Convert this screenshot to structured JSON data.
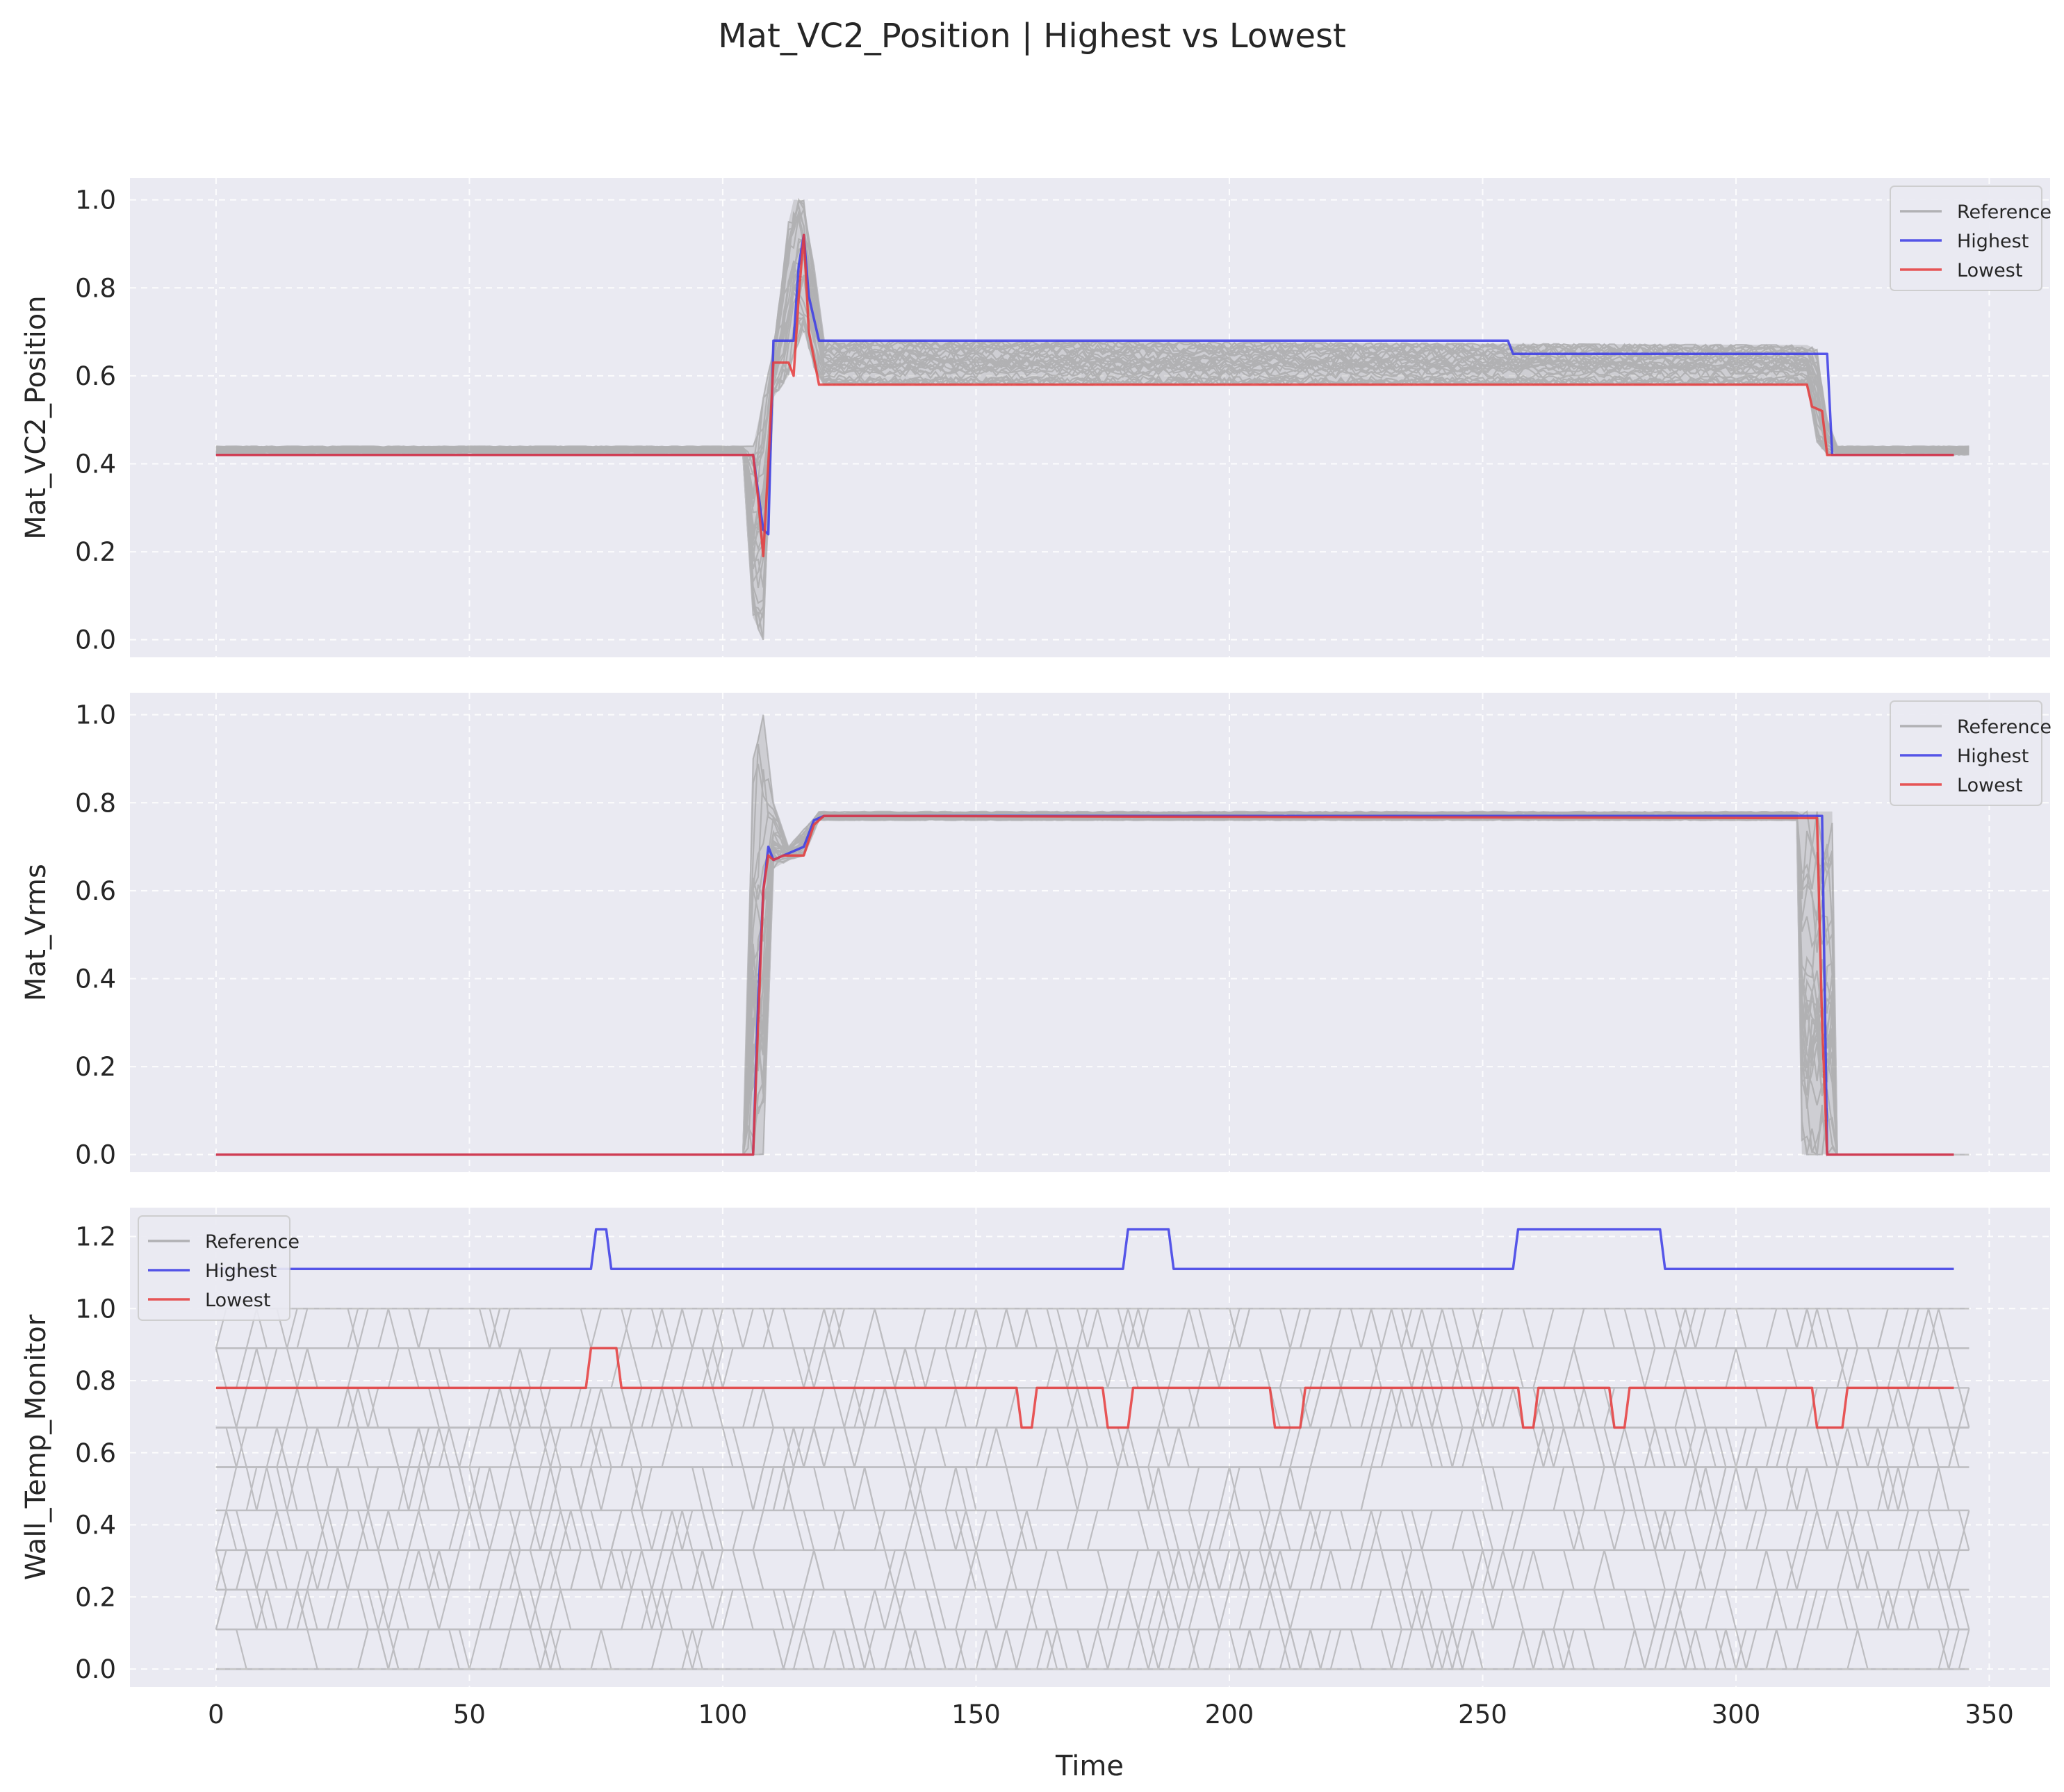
{
  "chart_data": {
    "type": "line",
    "title": "Mat_VC2_Position | Highest vs Lowest",
    "xlabel": "Time",
    "xlim": [
      -17,
      362
    ],
    "xticks": [
      0,
      50,
      100,
      150,
      200,
      250,
      300,
      350
    ],
    "colors": {
      "reference": "#9a9a9a",
      "highest": "#3b3be6",
      "lowest": "#e63b3b",
      "background": "#eaeaf2"
    },
    "grid": true,
    "legend_entries": [
      "Reference",
      "Highest",
      "Lowest"
    ],
    "panels": [
      {
        "ylabel": "Mat_VC2_Position",
        "ylim": [
          -0.04,
          1.05
        ],
        "yticks": [
          "0.0",
          "0.2",
          "0.4",
          "0.6",
          "0.8",
          "1.0"
        ],
        "legend_position": "upper-right",
        "series": [
          {
            "name": "Highest",
            "points": [
              [
                0,
                0.42
              ],
              [
                106,
                0.42
              ],
              [
                108,
                0.25
              ],
              [
                109,
                0.24
              ],
              [
                110,
                0.68
              ],
              [
                114,
                0.68
              ],
              [
                115,
                0.85
              ],
              [
                116,
                0.92
              ],
              [
                117,
                0.78
              ],
              [
                119,
                0.68
              ],
              [
                255,
                0.68
              ],
              [
                256,
                0.65
              ],
              [
                318,
                0.65
              ],
              [
                319,
                0.42
              ],
              [
                343,
                0.42
              ]
            ]
          },
          {
            "name": "Lowest",
            "points": [
              [
                0,
                0.42
              ],
              [
                106,
                0.42
              ],
              [
                107,
                0.32
              ],
              [
                108,
                0.19
              ],
              [
                109,
                0.4
              ],
              [
                110,
                0.63
              ],
              [
                113,
                0.63
              ],
              [
                114,
                0.6
              ],
              [
                115,
                0.78
              ],
              [
                116,
                0.92
              ],
              [
                117,
                0.7
              ],
              [
                119,
                0.58
              ],
              [
                314,
                0.58
              ],
              [
                315,
                0.53
              ],
              [
                317,
                0.52
              ],
              [
                318,
                0.42
              ],
              [
                343,
                0.42
              ]
            ]
          },
          {
            "name": "Reference",
            "range": [
              [
                0,
                0.42,
                0.44
              ],
              [
                104,
                0.42,
                0.44
              ],
              [
                106,
                0.05,
                0.44
              ],
              [
                108,
                0.0,
                0.55
              ],
              [
                110,
                0.55,
                0.67
              ],
              [
                113,
                0.6,
                0.95
              ],
              [
                114,
                0.65,
                1.0
              ],
              [
                116,
                0.7,
                1.0
              ],
              [
                118,
                0.62,
                0.85
              ],
              [
                120,
                0.58,
                0.68
              ],
              [
                314,
                0.58,
                0.67
              ],
              [
                316,
                0.45,
                0.66
              ],
              [
                318,
                0.42,
                0.5
              ],
              [
                320,
                0.42,
                0.44
              ],
              [
                346,
                0.42,
                0.44
              ]
            ]
          }
        ]
      },
      {
        "ylabel": "Mat_Vrms",
        "ylim": [
          -0.04,
          1.05
        ],
        "yticks": [
          "0.0",
          "0.2",
          "0.4",
          "0.6",
          "0.8",
          "1.0"
        ],
        "legend_position": "upper-right",
        "series": [
          {
            "name": "Highest",
            "points": [
              [
                0,
                0.0
              ],
              [
                106,
                0.0
              ],
              [
                107,
                0.35
              ],
              [
                108,
                0.6
              ],
              [
                109,
                0.7
              ],
              [
                110,
                0.67
              ],
              [
                112,
                0.68
              ],
              [
                116,
                0.7
              ],
              [
                118,
                0.76
              ],
              [
                120,
                0.77
              ],
              [
                317,
                0.77
              ],
              [
                318,
                0.0
              ],
              [
                343,
                0.0
              ]
            ]
          },
          {
            "name": "Lowest",
            "points": [
              [
                0,
                0.0
              ],
              [
                106,
                0.0
              ],
              [
                108,
                0.6
              ],
              [
                109,
                0.68
              ],
              [
                110,
                0.67
              ],
              [
                112,
                0.68
              ],
              [
                116,
                0.68
              ],
              [
                118,
                0.75
              ],
              [
                120,
                0.77
              ],
              [
                316,
                0.765
              ],
              [
                317,
                0.3
              ],
              [
                318,
                0.0
              ],
              [
                343,
                0.0
              ]
            ]
          },
          {
            "name": "Reference",
            "range": [
              [
                0,
                0.0,
                0.0
              ],
              [
                104,
                0.0,
                0.0
              ],
              [
                106,
                0.0,
                0.9
              ],
              [
                108,
                0.0,
                1.0
              ],
              [
                110,
                0.65,
                0.8
              ],
              [
                113,
                0.67,
                0.7
              ],
              [
                116,
                0.68,
                0.74
              ],
              [
                119,
                0.76,
                0.78
              ],
              [
                312,
                0.76,
                0.78
              ],
              [
                313,
                0.0,
                0.78
              ],
              [
                319,
                0.0,
                0.78
              ],
              [
                320,
                0.0,
                0.0
              ],
              [
                346,
                0.0,
                0.0
              ]
            ]
          }
        ]
      },
      {
        "ylabel": "Wall_Temp_Monitor",
        "ylim": [
          -0.05,
          1.28
        ],
        "yticks": [
          "0.0",
          "0.2",
          "0.4",
          "0.6",
          "0.8",
          "1.0",
          "1.2"
        ],
        "legend_position": "upper-left",
        "series": [
          {
            "name": "Highest",
            "points": [
              [
                0,
                1.11
              ],
              [
                74,
                1.11
              ],
              [
                75,
                1.22
              ],
              [
                77,
                1.22
              ],
              [
                78,
                1.11
              ],
              [
                179,
                1.11
              ],
              [
                180,
                1.22
              ],
              [
                188,
                1.22
              ],
              [
                189,
                1.11
              ],
              [
                256,
                1.11
              ],
              [
                257,
                1.22
              ],
              [
                285,
                1.22
              ],
              [
                286,
                1.11
              ],
              [
                343,
                1.11
              ]
            ]
          },
          {
            "name": "Lowest",
            "points": [
              [
                0,
                0.78
              ],
              [
                73,
                0.78
              ],
              [
                74,
                0.89
              ],
              [
                79,
                0.89
              ],
              [
                80,
                0.78
              ],
              [
                158,
                0.78
              ],
              [
                159,
                0.67
              ],
              [
                161,
                0.67
              ],
              [
                162,
                0.78
              ],
              [
                175,
                0.78
              ],
              [
                176,
                0.67
              ],
              [
                180,
                0.67
              ],
              [
                181,
                0.78
              ],
              [
                208,
                0.78
              ],
              [
                209,
                0.67
              ],
              [
                214,
                0.67
              ],
              [
                215,
                0.78
              ],
              [
                257,
                0.78
              ],
              [
                258,
                0.67
              ],
              [
                260,
                0.67
              ],
              [
                261,
                0.78
              ],
              [
                275,
                0.78
              ],
              [
                276,
                0.67
              ],
              [
                278,
                0.67
              ],
              [
                279,
                0.78
              ],
              [
                315,
                0.78
              ],
              [
                316,
                0.67
              ],
              [
                321,
                0.67
              ],
              [
                322,
                0.78
              ],
              [
                343,
                0.78
              ]
            ]
          },
          {
            "name": "Reference",
            "bands": [
              0.0,
              0.11,
              0.22,
              0.33,
              0.44,
              0.56,
              0.67,
              0.78,
              0.89,
              1.0
            ],
            "x_range": [
              0,
              346
            ]
          }
        ]
      }
    ]
  }
}
